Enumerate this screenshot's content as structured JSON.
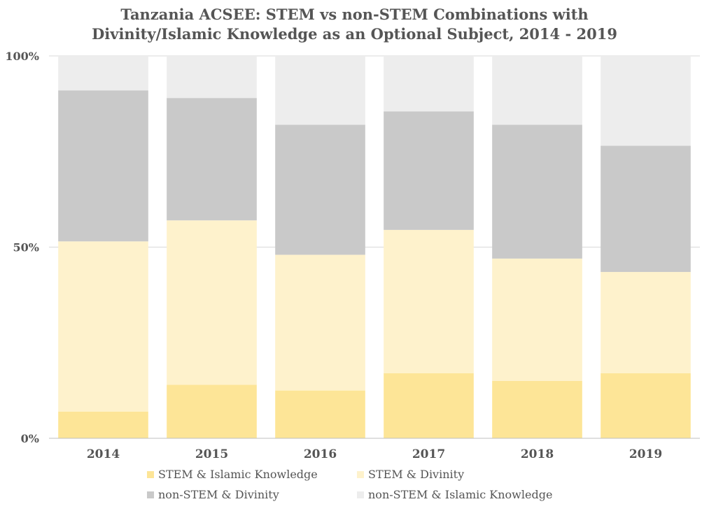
{
  "chart_data": {
    "type": "bar",
    "stacked": true,
    "percent": true,
    "title": "Tanzania ACSEE: STEM vs non-STEM Combinations with Divinity/Islamic Knowledge as an Optional Subject, 2014 - 2019",
    "title_lines": [
      "Tanzania ACSEE: STEM vs non-STEM Combinations with",
      "Divinity/Islamic Knowledge as an Optional Subject, 2014 - 2019"
    ],
    "xlabel": "",
    "ylabel": "",
    "ylim": [
      0,
      100
    ],
    "y_ticks": [
      {
        "value": 0,
        "label": "0%"
      },
      {
        "value": 50,
        "label": "50%"
      },
      {
        "value": 100,
        "label": "100%"
      }
    ],
    "categories": [
      "2014",
      "2015",
      "2016",
      "2017",
      "2018",
      "2019"
    ],
    "series": [
      {
        "name": "STEM & Islamic Knowledge",
        "color": "#fde597",
        "values": [
          7,
          14,
          12.5,
          17,
          15,
          17
        ]
      },
      {
        "name": "STEM & Divinity",
        "color": "#fef2cc",
        "values": [
          44.5,
          43,
          35.5,
          37.5,
          32,
          26.5
        ]
      },
      {
        "name": "non-STEM & Divinity",
        "color": "#c9c9c9",
        "values": [
          39.5,
          32,
          34,
          31,
          35,
          33
        ]
      },
      {
        "name": "non-STEM & Islamic Knowledge",
        "color": "#ededed",
        "values": [
          9,
          11,
          18,
          14.5,
          18,
          23.5
        ]
      }
    ],
    "legend_position": "bottom",
    "grid": true,
    "colors": {
      "text": "#555555",
      "grid": "#d9d9d9",
      "axis": "#bfbfbf"
    }
  }
}
